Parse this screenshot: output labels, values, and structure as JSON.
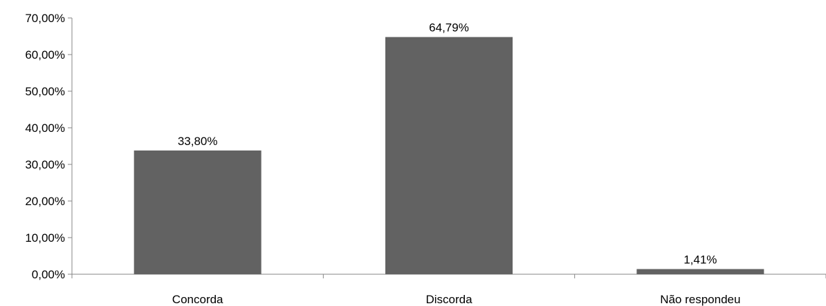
{
  "chart_data": {
    "type": "bar",
    "categories": [
      "Concorda",
      "Discorda",
      "Não respondeu"
    ],
    "values": [
      33.8,
      64.79,
      1.41
    ],
    "data_labels": [
      "33,80%",
      "64,79%",
      "1,41%"
    ],
    "yticks": [
      "0,00%",
      "10,00%",
      "20,00%",
      "30,00%",
      "40,00%",
      "50,00%",
      "60,00%",
      "70,00%"
    ],
    "ylim": [
      0,
      70
    ],
    "title": "",
    "xlabel": "",
    "ylabel": "",
    "grid": false,
    "legend": "none",
    "bar_color": "#626262"
  }
}
